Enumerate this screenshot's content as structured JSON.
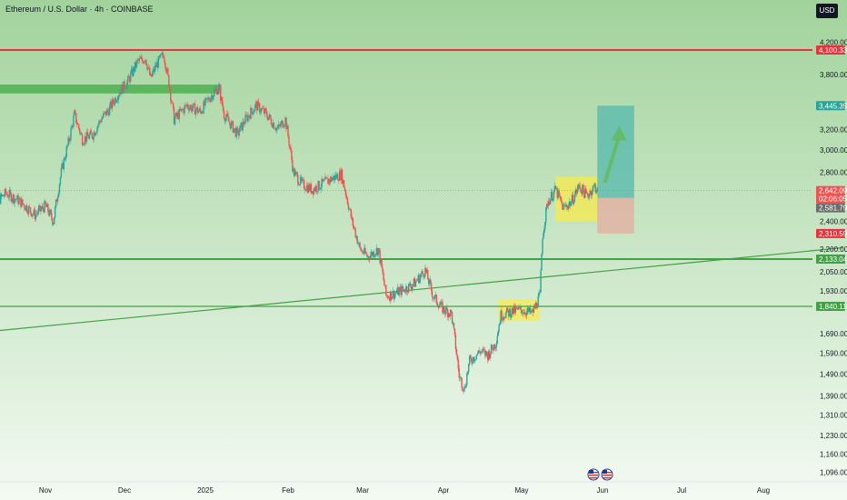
{
  "header": {
    "title": "Ethereum / U.S. Dollar · 4h · COINBASE",
    "currency": "USD"
  },
  "colors": {
    "background_top": "#a2d39c",
    "background_bottom": "#f3faf2",
    "resistance": "#e8323c",
    "support": "#43a047",
    "candle_up": "#26a69a",
    "candle_down": "#ef5350",
    "consolidation": "#ffeb3b",
    "target_zone": "#4db6ac",
    "stop_zone": "#e8a89c",
    "arrow": "#66bb6a"
  },
  "chart_data": {
    "type": "candlestick",
    "symbol": "Ethereum / U.S. Dollar",
    "interval": "4h",
    "exchange": "COINBASE",
    "x_tick_labels": [
      "Nov",
      "Dec",
      "2025",
      "Feb",
      "Mar",
      "Apr",
      "May",
      "Jun",
      "Jul",
      "Aug"
    ],
    "y_tick_labels": [
      "4,200.00",
      "3,800.00",
      "3,200.00",
      "3,000.00",
      "2,800.00",
      "2,400.00",
      "2,200.00",
      "2,050.00",
      "1,930.00",
      "1,690.00",
      "1,590.00",
      "1,490.00",
      "1,390.00",
      "1,310.00",
      "1,230.00",
      "1,160.00",
      "1,096.00"
    ],
    "ylim": [
      1060,
      4380
    ],
    "y_scale": "log",
    "price_labels": [
      {
        "value": 4100.33,
        "text": "4,100.33",
        "color": "#e8323c"
      },
      {
        "value": 3445.35,
        "text": "3,445.35",
        "color": "#26a69a"
      },
      {
        "value": 2642.09,
        "text": "2,642.09",
        "color": "#ef5350"
      },
      {
        "value": 2620.0,
        "text": "02:06:05",
        "color": "#ef5350"
      },
      {
        "value": 2581.79,
        "text": "2,581.79",
        "color": "#6d6d6d"
      },
      {
        "value": 2310.59,
        "text": "2,310.59",
        "color": "#e8323c"
      },
      {
        "value": 2133.04,
        "text": "2,133.04",
        "color": "#43a047"
      },
      {
        "value": 1840.11,
        "text": "1,840.11",
        "color": "#43a047"
      }
    ],
    "horizontal_lines": [
      {
        "value": 4100.33,
        "color": "#e8323c",
        "width": 2
      },
      {
        "value": 2133.04,
        "color": "#43a047",
        "width": 2
      },
      {
        "value": 1840.11,
        "color": "#43a047",
        "width": 1.2
      }
    ],
    "trendline": {
      "from": [
        "2024-10-10",
        1700
      ],
      "to": [
        "2025-08-31",
        2210
      ]
    },
    "zones": [
      {
        "type": "resistance-zone",
        "from": "2024-10-10",
        "to": "2025-01-07",
        "low": 3580,
        "high": 3680,
        "color": "#4caf50"
      },
      {
        "type": "consolidation",
        "from": "2025-04-22",
        "to": "2025-05-08",
        "low": 1760,
        "high": 1880,
        "color": "#ffeb3b"
      },
      {
        "type": "consolidation",
        "from": "2025-05-14",
        "to": "2025-05-30",
        "low": 2400,
        "high": 2760,
        "color": "#ffeb3b"
      },
      {
        "type": "target",
        "from": "2025-05-30",
        "to": "2025-06-13",
        "low": 2581.79,
        "high": 3445.35,
        "color": "#4db6ac"
      },
      {
        "type": "stop",
        "from": "2025-05-30",
        "to": "2025-06-13",
        "low": 2310.59,
        "high": 2581.79,
        "color": "#e8a89c"
      }
    ],
    "price_path": [
      [
        "2024-10-10",
        2480
      ],
      [
        "2024-10-17",
        2620
      ],
      [
        "2024-10-22",
        2560
      ],
      [
        "2024-10-28",
        2450
      ],
      [
        "2024-11-01",
        2520
      ],
      [
        "2024-11-04",
        2400
      ],
      [
        "2024-11-07",
        2800
      ],
      [
        "2024-11-10",
        3100
      ],
      [
        "2024-11-12",
        3350
      ],
      [
        "2024-11-15",
        3100
      ],
      [
        "2024-11-19",
        3150
      ],
      [
        "2024-11-22",
        3300
      ],
      [
        "2024-11-25",
        3400
      ],
      [
        "2024-11-29",
        3600
      ],
      [
        "2024-12-02",
        3700
      ],
      [
        "2024-12-06",
        3950
      ],
      [
        "2024-12-09",
        4000
      ],
      [
        "2024-12-11",
        3750
      ],
      [
        "2024-12-13",
        3900
      ],
      [
        "2024-12-16",
        4050
      ],
      [
        "2024-12-18",
        3700
      ],
      [
        "2024-12-20",
        3300
      ],
      [
        "2024-12-25",
        3450
      ],
      [
        "2024-12-30",
        3380
      ],
      [
        "2025-01-03",
        3550
      ],
      [
        "2025-01-06",
        3650
      ],
      [
        "2025-01-08",
        3350
      ],
      [
        "2025-01-13",
        3150
      ],
      [
        "2025-01-16",
        3300
      ],
      [
        "2025-01-20",
        3450
      ],
      [
        "2025-01-24",
        3350
      ],
      [
        "2025-01-28",
        3200
      ],
      [
        "2025-01-31",
        3300
      ],
      [
        "2025-02-03",
        2800
      ],
      [
        "2025-02-06",
        2700
      ],
      [
        "2025-02-10",
        2650
      ],
      [
        "2025-02-14",
        2700
      ],
      [
        "2025-02-18",
        2750
      ],
      [
        "2025-02-21",
        2780
      ],
      [
        "2025-02-25",
        2400
      ],
      [
        "2025-02-28",
        2200
      ],
      [
        "2025-03-03",
        2150
      ],
      [
        "2025-03-07",
        2200
      ],
      [
        "2025-03-10",
        1900
      ],
      [
        "2025-03-14",
        1920
      ],
      [
        "2025-03-18",
        1950
      ],
      [
        "2025-03-21",
        1980
      ],
      [
        "2025-03-25",
        2060
      ],
      [
        "2025-03-28",
        1900
      ],
      [
        "2025-04-01",
        1820
      ],
      [
        "2025-04-04",
        1800
      ],
      [
        "2025-04-07",
        1480
      ],
      [
        "2025-04-09",
        1420
      ],
      [
        "2025-04-11",
        1550
      ],
      [
        "2025-04-15",
        1600
      ],
      [
        "2025-04-18",
        1580
      ],
      [
        "2025-04-21",
        1640
      ],
      [
        "2025-04-23",
        1790
      ],
      [
        "2025-04-27",
        1810
      ],
      [
        "2025-05-01",
        1820
      ],
      [
        "2025-05-05",
        1800
      ],
      [
        "2025-05-08",
        1900
      ],
      [
        "2025-05-09",
        2300
      ],
      [
        "2025-05-11",
        2550
      ],
      [
        "2025-05-14",
        2650
      ],
      [
        "2025-05-17",
        2500
      ],
      [
        "2025-05-20",
        2550
      ],
      [
        "2025-05-23",
        2680
      ],
      [
        "2025-05-26",
        2600
      ],
      [
        "2025-05-29",
        2680
      ],
      [
        "2025-05-30",
        2642
      ]
    ]
  }
}
